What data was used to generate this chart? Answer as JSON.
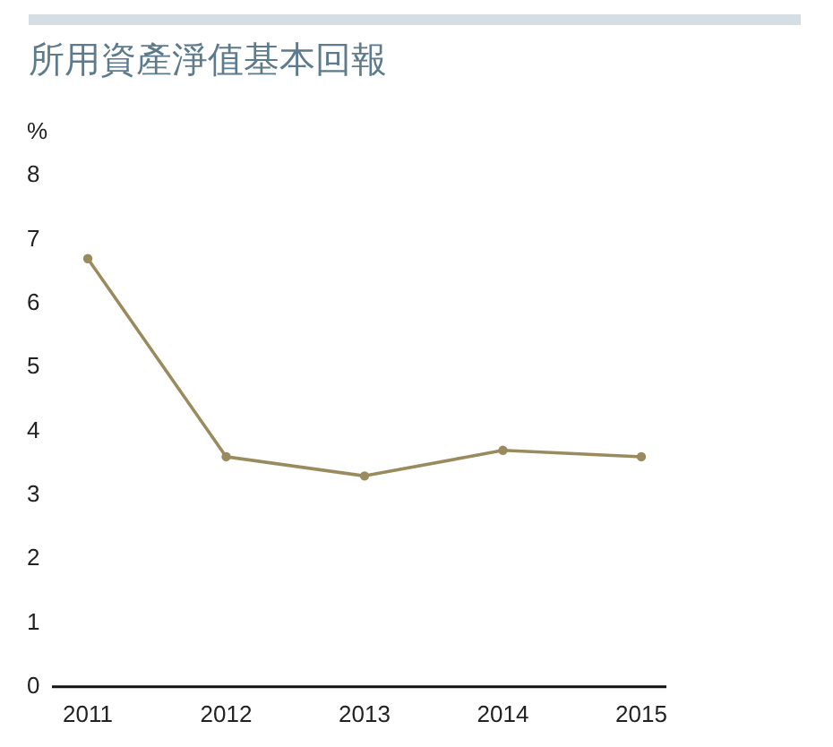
{
  "chart_data": {
    "type": "line",
    "title": "所用資產淨值基本回報",
    "ylabel": "%",
    "categories": [
      "2011",
      "2012",
      "2013",
      "2014",
      "2015"
    ],
    "values": [
      6.7,
      3.6,
      3.3,
      3.7,
      3.6
    ],
    "color": "#9a8b5e",
    "marker": "circle",
    "ylim": [
      0,
      8
    ],
    "yticks": [
      0,
      1,
      2,
      3,
      4,
      5,
      6,
      7,
      8
    ]
  }
}
